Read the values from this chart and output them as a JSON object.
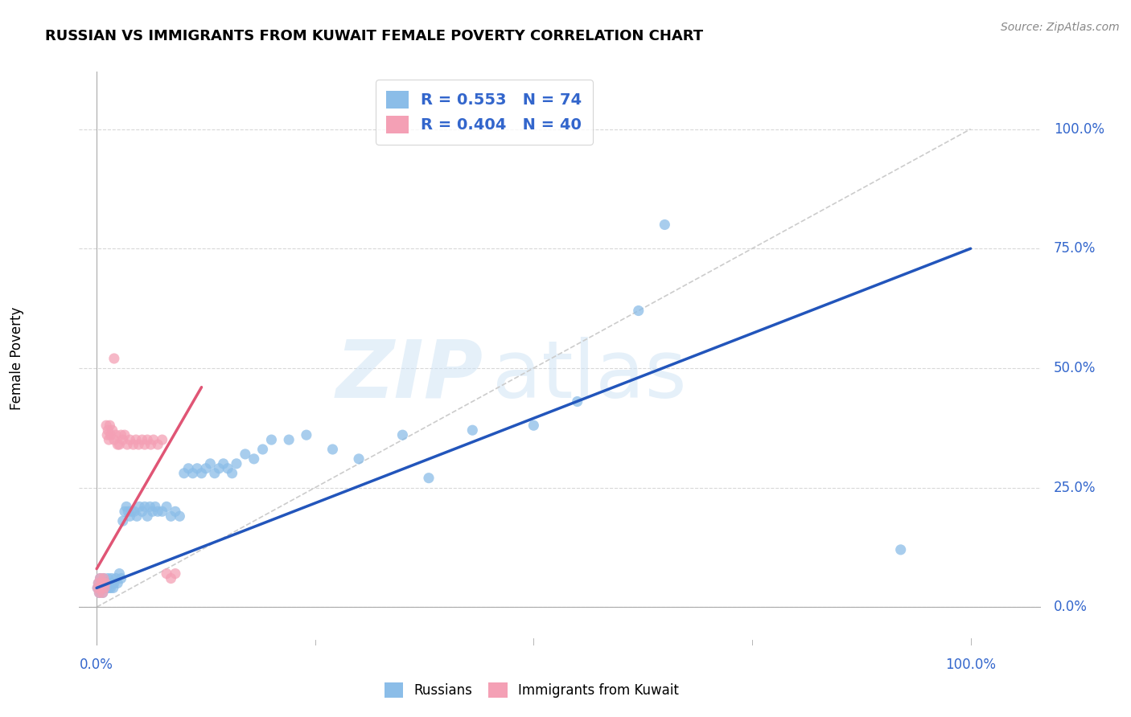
{
  "title": "RUSSIAN VS IMMIGRANTS FROM KUWAIT FEMALE POVERTY CORRELATION CHART",
  "source": "Source: ZipAtlas.com",
  "ylabel": "Female Poverty",
  "ytick_labels": [
    "0.0%",
    "25.0%",
    "50.0%",
    "75.0%",
    "100.0%"
  ],
  "ytick_positions": [
    0.0,
    0.25,
    0.5,
    0.75,
    1.0
  ],
  "xtick_labels": [
    "0.0%",
    "100.0%"
  ],
  "xtick_positions": [
    0.0,
    1.0
  ],
  "xlim": [
    -0.02,
    1.08
  ],
  "ylim": [
    -0.08,
    1.12
  ],
  "legend_R1": "R = 0.553",
  "legend_N1": "N = 74",
  "legend_R2": "R = 0.404",
  "legend_N2": "N = 40",
  "color_russian": "#8BBDE8",
  "color_kuwait": "#F4A0B5",
  "color_russian_line": "#2255BB",
  "color_kuwait_line": "#E05575",
  "color_dashed_line": "#CCCCCC",
  "watermark_zip": "ZIP",
  "watermark_atlas": "atlas",
  "blue_line_x": [
    0.0,
    1.0
  ],
  "blue_line_y": [
    0.04,
    0.75
  ],
  "pink_line_x": [
    0.0,
    0.12
  ],
  "pink_line_y": [
    0.08,
    0.46
  ],
  "dashed_line_x": [
    0.0,
    1.0
  ],
  "dashed_line_y": [
    0.0,
    1.0
  ],
  "russians_x": [
    0.001,
    0.002,
    0.003,
    0.004,
    0.005,
    0.006,
    0.007,
    0.008,
    0.009,
    0.01,
    0.011,
    0.012,
    0.013,
    0.014,
    0.015,
    0.016,
    0.017,
    0.018,
    0.019,
    0.02,
    0.022,
    0.024,
    0.026,
    0.028,
    0.03,
    0.032,
    0.034,
    0.036,
    0.038,
    0.04,
    0.043,
    0.046,
    0.049,
    0.052,
    0.055,
    0.058,
    0.061,
    0.064,
    0.067,
    0.07,
    0.075,
    0.08,
    0.085,
    0.09,
    0.095,
    0.1,
    0.105,
    0.11,
    0.115,
    0.12,
    0.125,
    0.13,
    0.135,
    0.14,
    0.145,
    0.15,
    0.155,
    0.16,
    0.17,
    0.18,
    0.19,
    0.2,
    0.22,
    0.24,
    0.27,
    0.3,
    0.35,
    0.38,
    0.43,
    0.5,
    0.55,
    0.62,
    0.65,
    0.92
  ],
  "russians_y": [
    0.04,
    0.05,
    0.03,
    0.06,
    0.04,
    0.05,
    0.03,
    0.06,
    0.04,
    0.05,
    0.04,
    0.05,
    0.06,
    0.04,
    0.05,
    0.04,
    0.06,
    0.05,
    0.04,
    0.05,
    0.06,
    0.05,
    0.07,
    0.06,
    0.18,
    0.2,
    0.21,
    0.2,
    0.19,
    0.2,
    0.2,
    0.19,
    0.21,
    0.2,
    0.21,
    0.19,
    0.21,
    0.2,
    0.21,
    0.2,
    0.2,
    0.21,
    0.19,
    0.2,
    0.19,
    0.28,
    0.29,
    0.28,
    0.29,
    0.28,
    0.29,
    0.3,
    0.28,
    0.29,
    0.3,
    0.29,
    0.28,
    0.3,
    0.32,
    0.31,
    0.33,
    0.35,
    0.35,
    0.36,
    0.33,
    0.31,
    0.36,
    0.27,
    0.37,
    0.38,
    0.43,
    0.62,
    0.8,
    0.12
  ],
  "kuwait_x": [
    0.001,
    0.002,
    0.003,
    0.004,
    0.005,
    0.006,
    0.007,
    0.008,
    0.009,
    0.01,
    0.011,
    0.012,
    0.013,
    0.014,
    0.015,
    0.016,
    0.018,
    0.02,
    0.022,
    0.024,
    0.026,
    0.028,
    0.03,
    0.032,
    0.035,
    0.038,
    0.042,
    0.045,
    0.048,
    0.052,
    0.055,
    0.058,
    0.062,
    0.065,
    0.07,
    0.075,
    0.08,
    0.085,
    0.09,
    0.02
  ],
  "kuwait_y": [
    0.04,
    0.05,
    0.03,
    0.06,
    0.04,
    0.05,
    0.03,
    0.06,
    0.04,
    0.05,
    0.38,
    0.36,
    0.37,
    0.35,
    0.38,
    0.36,
    0.37,
    0.35,
    0.36,
    0.34,
    0.34,
    0.36,
    0.35,
    0.36,
    0.34,
    0.35,
    0.34,
    0.35,
    0.34,
    0.35,
    0.34,
    0.35,
    0.34,
    0.35,
    0.34,
    0.35,
    0.07,
    0.06,
    0.07,
    0.52
  ]
}
